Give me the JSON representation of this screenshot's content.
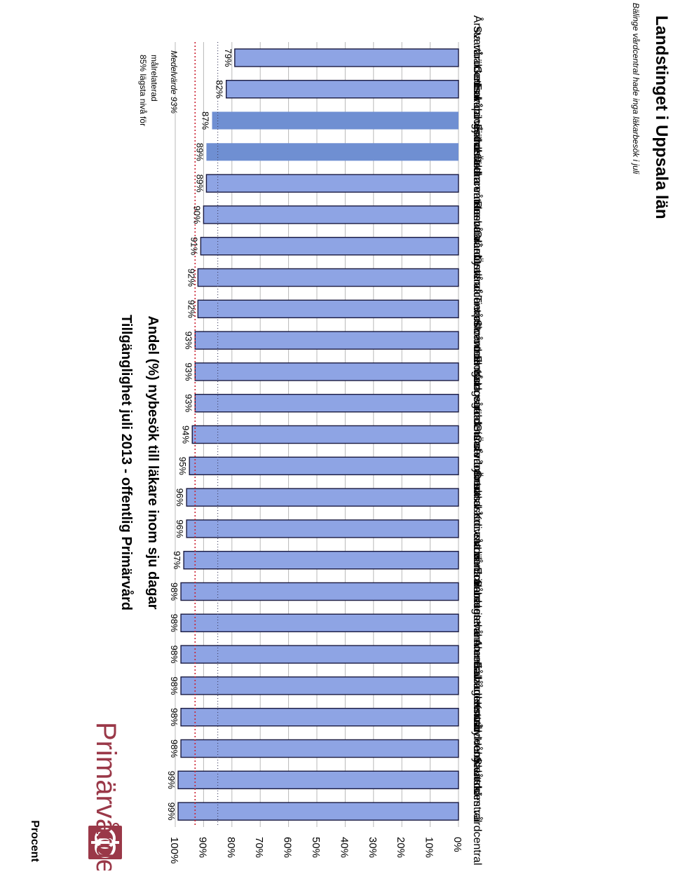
{
  "brand": {
    "name": "Primärvården",
    "region": "Landstinget i Uppsala län"
  },
  "chart_data": {
    "type": "bar",
    "orientation": "horizontal",
    "title": "Tillgänglighet juli 2013 - offentlig Primärvård",
    "subtitle": "Andel (%) nybesök till läkare inom sju dagar",
    "ylabel": "Procent",
    "ylim": [
      0,
      100
    ],
    "yticks": [
      "0%",
      "10%",
      "20%",
      "30%",
      "40%",
      "50%",
      "60%",
      "70%",
      "80%",
      "90%",
      "100%"
    ],
    "grid": true,
    "categories": [
      "Skutskärs vårdcentral",
      "Heby vårdcentral",
      "Knutby vårdcentral",
      "Fålhagens vårdcentral",
      "Alunda vårdcentral",
      "Samaritehemmets vårdcentral",
      "Eriksbergs vårdcentral",
      "Länna vårdcentral",
      "Knivsta vårdcentral",
      "Örsundsbro vårdcentral",
      "Österbybruks vårdcentral",
      "Gimo vårdcentral",
      "Kungsgärdets vårdcentral",
      "Flogsta vårdcentral",
      "Storvreta vårdcentral",
      "Tierps vårdcentral",
      "Östervåla vårdcentral",
      "Gränby vårdcentral",
      "Rasbo vårdcentral",
      "Östhammars vårdcentral",
      "Fjärdhundra vårdcentral",
      "Enköpings husläkarcentrum",
      "Gottsunda vårdcentral",
      "Svartbäckens vårdcentral",
      "Årsta vårdcentral"
    ],
    "values": [
      99,
      99,
      98,
      98,
      98,
      98,
      98,
      98,
      97,
      96,
      96,
      95,
      94,
      93,
      93,
      93,
      92,
      92,
      91,
      90,
      89,
      89,
      87,
      82,
      79
    ],
    "value_labels": [
      "99%",
      "99%",
      "98%",
      "98%",
      "98%",
      "98%",
      "98%",
      "98%",
      "97%",
      "96%",
      "96%",
      "95%",
      "94%",
      "93%",
      "93%",
      "93%",
      "92%",
      "92%",
      "91%",
      "90%",
      "89%",
      "89%",
      "87%",
      "82%",
      "79%"
    ],
    "highlighted": [
      "Enköpings husläkarcentrum",
      "Gottsunda vårdcentral"
    ],
    "reference_lines": [
      {
        "value": 93,
        "label": "Medelvärde 93%"
      },
      {
        "value": 85,
        "label": "85% lägsta nivå för målrelaterad"
      }
    ],
    "footnote": "Bälinge vårdcentral hade inga läkarbesök i juli",
    "colors": {
      "bar": "#8ea4e4",
      "bar_highlight": "#6f8fd2",
      "bar_edge": "#1a1a40",
      "grid": "#b8b8b8",
      "average_line": "#cc2233",
      "threshold_line": "#444466",
      "logo": "#9a3848"
    }
  }
}
